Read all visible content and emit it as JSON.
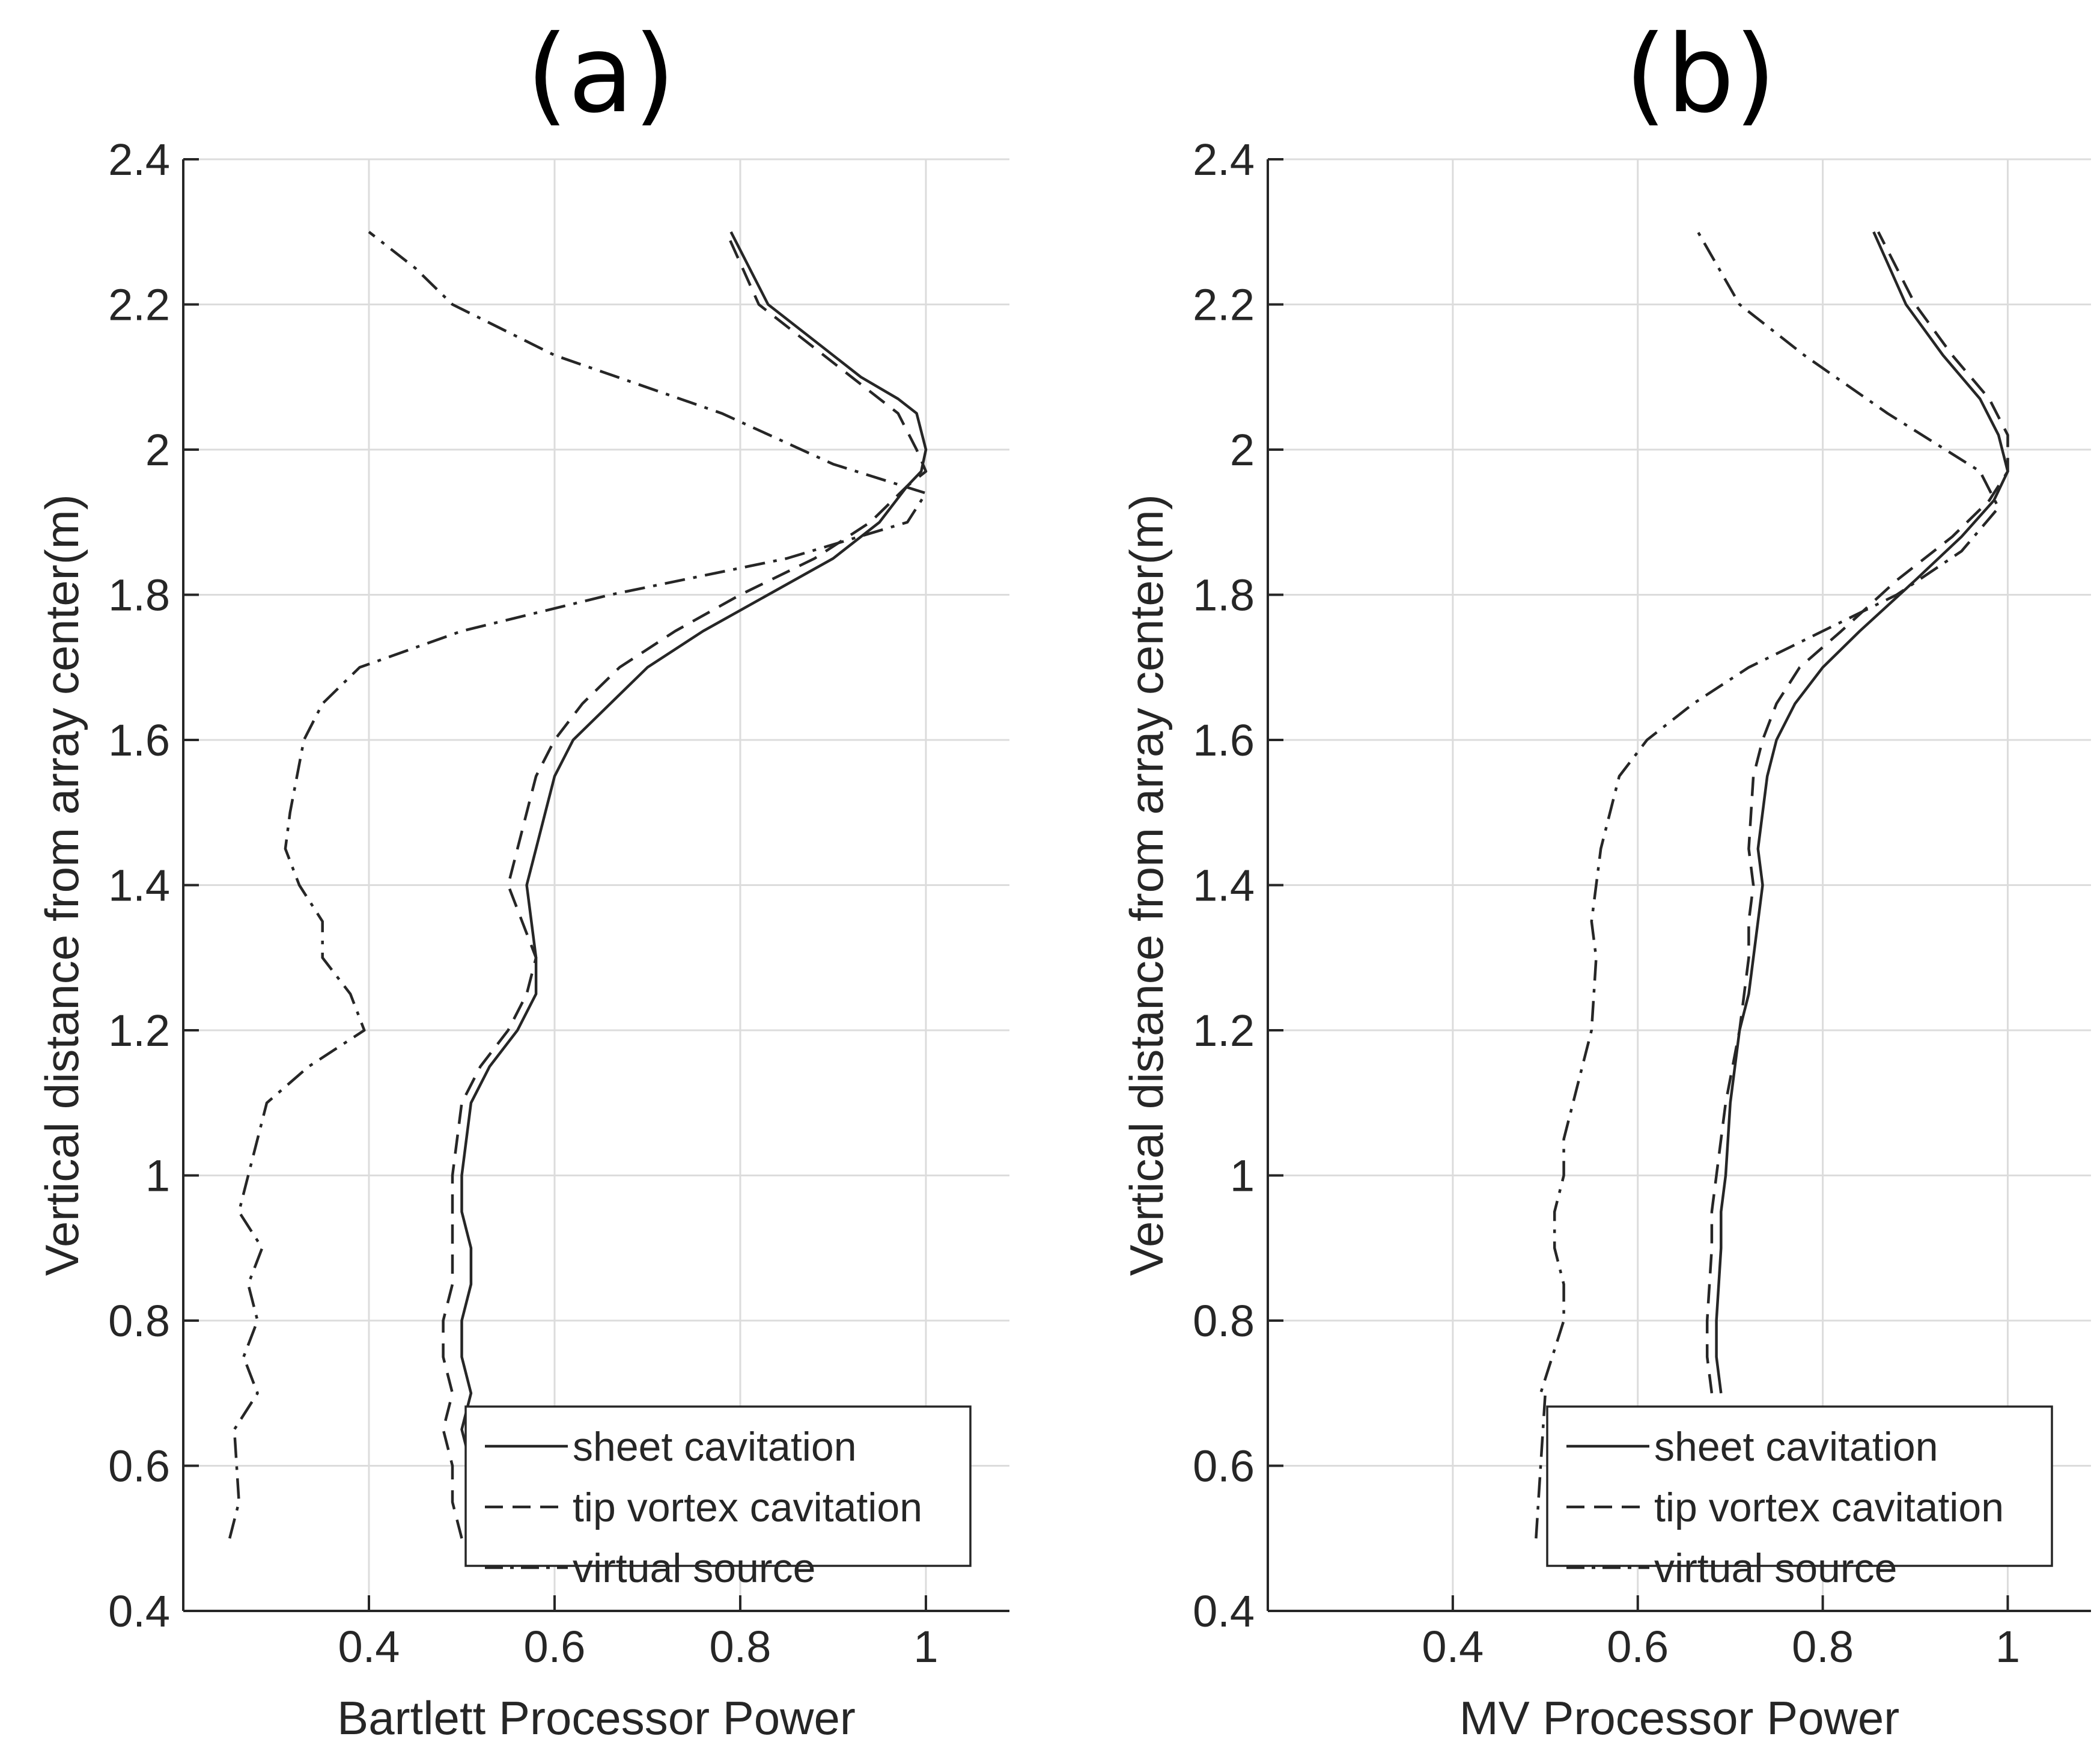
{
  "chart_data": [
    {
      "type": "line",
      "panel_title": "(a)",
      "xlabel": "Bartlett Processor Power",
      "ylabel": "Vertical distance from array center(m)",
      "xlim": [
        0.2,
        1.09
      ],
      "ylim": [
        0.4,
        2.4
      ],
      "xticks": [
        0.4,
        0.6,
        0.8,
        1
      ],
      "xtick_labels": [
        "0.4",
        "0.6",
        "0.8",
        "1"
      ],
      "yticks": [
        0.4,
        0.6,
        0.8,
        1.0,
        1.2,
        1.4,
        1.6,
        1.8,
        2.0,
        2.2,
        2.4
      ],
      "ytick_labels": [
        "0.4",
        "0.6",
        "0.8",
        "1",
        "1.2",
        "1.4",
        "1.6",
        "1.8",
        "2",
        "2.2",
        "2.4"
      ],
      "grid": true,
      "legend_position": "bottom-right",
      "series": [
        {
          "name": "sheet cavitation",
          "style": "solid",
          "x": [
            0.52,
            0.51,
            0.51,
            0.5,
            0.51,
            0.5,
            0.5,
            0.51,
            0.51,
            0.5,
            0.5,
            0.51,
            0.53,
            0.56,
            0.58,
            0.58,
            0.57,
            0.58,
            0.59,
            0.6,
            0.62,
            0.66,
            0.7,
            0.76,
            0.83,
            0.9,
            0.95,
            0.98,
            0.995,
            1.0,
            0.99,
            0.97,
            0.93,
            0.88,
            0.83,
            0.79
          ],
          "y": [
            0.5,
            0.55,
            0.6,
            0.65,
            0.7,
            0.75,
            0.8,
            0.85,
            0.9,
            0.95,
            1.0,
            1.1,
            1.15,
            1.2,
            1.25,
            1.3,
            1.4,
            1.45,
            1.5,
            1.55,
            1.6,
            1.65,
            1.7,
            1.75,
            1.8,
            1.85,
            1.9,
            1.95,
            1.97,
            2.0,
            2.05,
            2.07,
            2.1,
            2.15,
            2.2,
            2.3
          ]
        },
        {
          "name": "tip vortex cavitation",
          "style": "dashed",
          "x": [
            0.5,
            0.49,
            0.49,
            0.48,
            0.49,
            0.48,
            0.48,
            0.49,
            0.49,
            0.49,
            0.49,
            0.5,
            0.52,
            0.55,
            0.57,
            0.58,
            0.55,
            0.56,
            0.57,
            0.58,
            0.6,
            0.63,
            0.67,
            0.73,
            0.8,
            0.88,
            0.94,
            0.98,
            1.0,
            0.99,
            0.97,
            0.95,
            0.92,
            0.87,
            0.82,
            0.785
          ],
          "y": [
            0.5,
            0.55,
            0.6,
            0.65,
            0.7,
            0.75,
            0.8,
            0.85,
            0.9,
            0.95,
            1.0,
            1.1,
            1.15,
            1.2,
            1.25,
            1.3,
            1.4,
            1.45,
            1.5,
            1.55,
            1.6,
            1.65,
            1.7,
            1.75,
            1.8,
            1.85,
            1.9,
            1.95,
            1.97,
            2.0,
            2.05,
            2.07,
            2.1,
            2.15,
            2.2,
            2.3
          ]
        },
        {
          "name": "virtual source",
          "style": "dash-dot",
          "x": [
            0.25,
            0.26,
            0.255,
            0.28,
            0.265,
            0.28,
            0.27,
            0.285,
            0.275,
            0.26,
            0.27,
            0.29,
            0.335,
            0.395,
            0.38,
            0.35,
            0.35,
            0.325,
            0.31,
            0.315,
            0.33,
            0.35,
            0.39,
            0.5,
            0.66,
            0.85,
            0.98,
            1.0,
            0.9,
            0.78,
            0.6,
            0.49,
            0.45,
            0.4
          ],
          "y": [
            0.5,
            0.55,
            0.65,
            0.7,
            0.75,
            0.8,
            0.85,
            0.9,
            0.92,
            0.95,
            1.0,
            1.1,
            1.15,
            1.2,
            1.25,
            1.3,
            1.35,
            1.4,
            1.45,
            1.5,
            1.6,
            1.65,
            1.7,
            1.75,
            1.8,
            1.85,
            1.9,
            1.94,
            1.98,
            2.05,
            2.13,
            2.2,
            2.25,
            2.3
          ]
        }
      ]
    },
    {
      "type": "line",
      "panel_title": "(b)",
      "xlabel": "MV Processor Power",
      "ylabel": "Vertical distance from array center(m)",
      "xlim": [
        0.2,
        1.09
      ],
      "ylim": [
        0.4,
        2.4
      ],
      "xticks": [
        0.4,
        0.6,
        0.8,
        1
      ],
      "xtick_labels": [
        "0.4",
        "0.6",
        "0.8",
        "1"
      ],
      "yticks": [
        0.4,
        0.6,
        0.8,
        1.0,
        1.2,
        1.4,
        1.6,
        1.8,
        2.0,
        2.2,
        2.4
      ],
      "ytick_labels": [
        "0.4",
        "0.6",
        "0.8",
        "1",
        "1.2",
        "1.4",
        "1.6",
        "1.8",
        "2",
        "2.2",
        "2.4"
      ],
      "grid": true,
      "legend_position": "bottom-right",
      "series": [
        {
          "name": "sheet cavitation",
          "style": "solid",
          "x": [
            0.69,
            0.685,
            0.685,
            0.69,
            0.69,
            0.695,
            0.7,
            0.71,
            0.72,
            0.725,
            0.73,
            0.735,
            0.73,
            0.74,
            0.75,
            0.77,
            0.8,
            0.84,
            0.9,
            0.95,
            0.985,
            1.0,
            0.99,
            0.97,
            0.93,
            0.89,
            0.855
          ],
          "y": [
            0.7,
            0.75,
            0.8,
            0.9,
            0.95,
            1.0,
            1.1,
            1.2,
            1.25,
            1.3,
            1.35,
            1.4,
            1.45,
            1.55,
            1.6,
            1.65,
            1.7,
            1.75,
            1.82,
            1.88,
            1.93,
            1.97,
            2.02,
            2.07,
            2.13,
            2.2,
            2.3
          ]
        },
        {
          "name": "tip vortex cavitation",
          "style": "dashed",
          "x": [
            0.68,
            0.675,
            0.675,
            0.68,
            0.68,
            0.685,
            0.695,
            0.71,
            0.715,
            0.72,
            0.72,
            0.725,
            0.72,
            0.725,
            0.735,
            0.75,
            0.775,
            0.82,
            0.88,
            0.94,
            0.98,
            1.0,
            1.0,
            0.98,
            0.94,
            0.9,
            0.86
          ],
          "y": [
            0.7,
            0.75,
            0.8,
            0.9,
            0.95,
            1.0,
            1.1,
            1.2,
            1.25,
            1.3,
            1.35,
            1.4,
            1.45,
            1.55,
            1.6,
            1.65,
            1.7,
            1.75,
            1.82,
            1.88,
            1.93,
            1.97,
            2.02,
            2.07,
            2.13,
            2.2,
            2.3
          ]
        },
        {
          "name": "virtual source",
          "style": "dash-dot",
          "x": [
            0.49,
            0.495,
            0.5,
            0.495,
            0.52,
            0.52,
            0.51,
            0.51,
            0.52,
            0.52,
            0.53,
            0.54,
            0.55,
            0.555,
            0.55,
            0.56,
            0.58,
            0.61,
            0.66,
            0.72,
            0.8,
            0.88,
            0.95,
            0.99,
            0.97,
            0.87,
            0.78,
            0.71,
            0.665
          ],
          "y": [
            0.5,
            0.6,
            0.7,
            0.7,
            0.8,
            0.85,
            0.9,
            0.95,
            1.0,
            1.05,
            1.1,
            1.15,
            1.2,
            1.3,
            1.35,
            1.45,
            1.55,
            1.6,
            1.65,
            1.7,
            1.75,
            1.8,
            1.86,
            1.92,
            1.97,
            2.05,
            2.13,
            2.2,
            2.3
          ]
        }
      ]
    }
  ]
}
